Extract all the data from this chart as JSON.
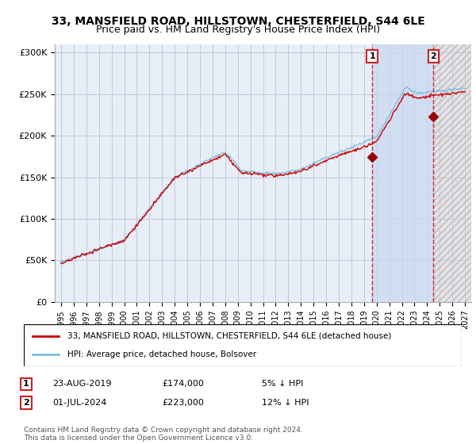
{
  "title": "33, MANSFIELD ROAD, HILLSTOWN, CHESTERFIELD, S44 6LE",
  "subtitle": "Price paid vs. HM Land Registry's House Price Index (HPI)",
  "legend_line1": "33, MANSFIELD ROAD, HILLSTOWN, CHESTERFIELD, S44 6LE (detached house)",
  "legend_line2": "HPI: Average price, detached house, Bolsover",
  "annotation1_num": "1",
  "annotation1_date": "23-AUG-2019",
  "annotation1_price": "£174,000",
  "annotation1_hpi": "5% ↓ HPI",
  "annotation2_num": "2",
  "annotation2_date": "01-JUL-2024",
  "annotation2_price": "£223,000",
  "annotation2_hpi": "12% ↓ HPI",
  "footnote": "Contains HM Land Registry data © Crown copyright and database right 2024.\nThis data is licensed under the Open Government Licence v3.0.",
  "hpi_color": "#7fbfdf",
  "price_color": "#cc0000",
  "marker_color": "#990000",
  "background_color": "#ffffff",
  "plot_bg_color": "#e8eef8",
  "grid_color": "#c0c8d8",
  "shade1_color": "#c8d8f0",
  "shade2_color": "#ddd0d0",
  "ylim": [
    0,
    310000
  ],
  "yticks": [
    0,
    50000,
    100000,
    150000,
    200000,
    250000,
    300000
  ],
  "ytick_labels": [
    "£0",
    "£50K",
    "£100K",
    "£150K",
    "£200K",
    "£250K",
    "£300K"
  ],
  "sale1_x": 2019.65,
  "sale1_y": 174000,
  "sale2_x": 2024.5,
  "sale2_y": 223000,
  "xmin": 1994.5,
  "xmax": 2027.5,
  "hpi_noise_std": 1800,
  "price_noise_std": 2200,
  "random_seed": 42
}
